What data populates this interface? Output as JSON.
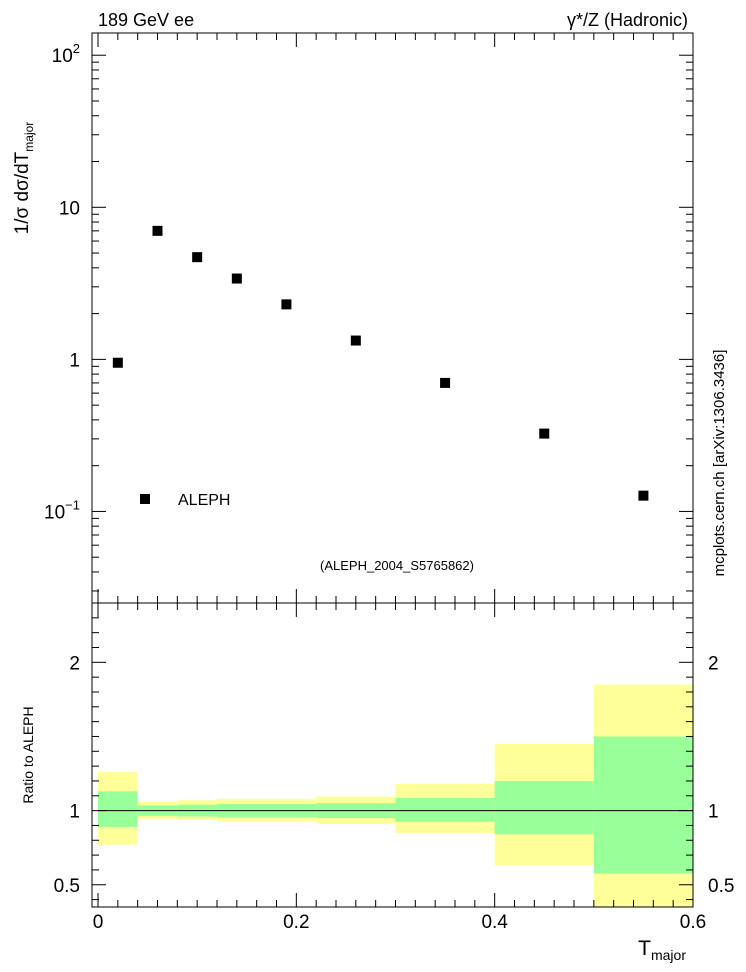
{
  "header": {
    "left_label": "189 GeV ee",
    "right_label": "γ*/Z (Hadronic)"
  },
  "watermark": "mcplots.cern.ch [arXiv:1306.3436]",
  "analysis_tag": "(ALEPH_2004_S5765862)",
  "colors": {
    "marker": "#000000",
    "band_inner": "#99ff99",
    "band_outer": "#ffff99",
    "tag_text": "#999999",
    "watermark_text": "#666666"
  },
  "chart_data": [
    {
      "type": "scatter",
      "panel": "main",
      "ylabel": {
        "main": "1/σ  dσ/dT",
        "sub": "major"
      },
      "yscale": "log",
      "xlim": [
        0,
        0.6
      ],
      "ylim": [
        0.025,
        140
      ],
      "yticks": [
        {
          "value": 100,
          "base": "10",
          "exp": "2"
        },
        {
          "value": 10,
          "base": "10",
          "exp": ""
        },
        {
          "value": 1,
          "base": "1",
          "exp": ""
        },
        {
          "value": 0.1,
          "base": "10",
          "exp": "−1"
        }
      ],
      "legend": {
        "position": "bottom-left",
        "entries": [
          "ALEPH"
        ]
      },
      "series": [
        {
          "name": "ALEPH",
          "marker": "square",
          "x": [
            0.02,
            0.06,
            0.1,
            0.14,
            0.19,
            0.26,
            0.35,
            0.45,
            0.55
          ],
          "y": [
            0.95,
            7.0,
            4.7,
            3.4,
            2.3,
            1.33,
            0.7,
            0.325,
            0.127
          ]
        }
      ]
    },
    {
      "type": "area",
      "panel": "ratio",
      "ylabel": "Ratio to ALEPH",
      "xlabel": {
        "main": "T",
        "sub": "major"
      },
      "xlim": [
        0,
        0.6
      ],
      "ylim": [
        0.35,
        2.4
      ],
      "xticks": [
        "0",
        "0.2",
        "0.4",
        "0.6"
      ],
      "yticks": [
        "0.5",
        "1",
        "2"
      ],
      "reference_line": 1,
      "bins": [
        {
          "lo": 0.0,
          "hi": 0.04,
          "inner": [
            0.89,
            1.13
          ],
          "outer": [
            0.77,
            1.26
          ]
        },
        {
          "lo": 0.04,
          "hi": 0.08,
          "inner": [
            0.965,
            1.035
          ],
          "outer": [
            0.945,
            1.06
          ]
        },
        {
          "lo": 0.08,
          "hi": 0.12,
          "inner": [
            0.96,
            1.04
          ],
          "outer": [
            0.94,
            1.07
          ]
        },
        {
          "lo": 0.12,
          "hi": 0.22,
          "inner": [
            0.955,
            1.045
          ],
          "outer": [
            0.925,
            1.08
          ]
        },
        {
          "lo": 0.22,
          "hi": 0.3,
          "inner": [
            0.95,
            1.05
          ],
          "outer": [
            0.915,
            1.095
          ]
        },
        {
          "lo": 0.3,
          "hi": 0.4,
          "inner": [
            0.925,
            1.085
          ],
          "outer": [
            0.85,
            1.18
          ]
        },
        {
          "lo": 0.4,
          "hi": 0.5,
          "inner": [
            0.84,
            1.2
          ],
          "outer": [
            0.63,
            1.45
          ]
        },
        {
          "lo": 0.5,
          "hi": 0.6,
          "inner": [
            0.575,
            1.5
          ],
          "outer": [
            0.35,
            1.85
          ]
        }
      ]
    }
  ]
}
